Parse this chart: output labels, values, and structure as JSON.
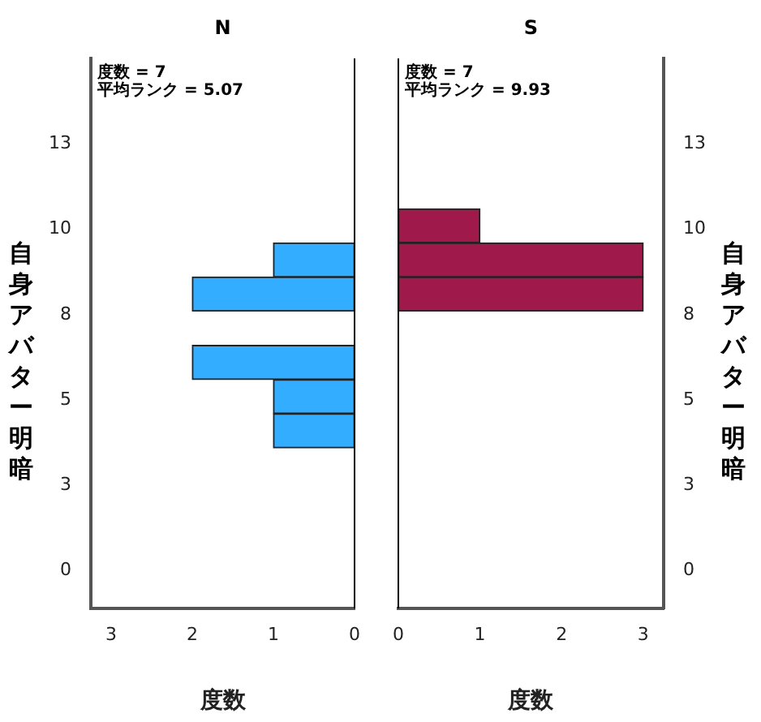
{
  "chart_data": [
    {
      "type": "histogram",
      "title": "N",
      "orientation": "horizontal",
      "bins": [
        3.6,
        4.6,
        5.6,
        6.6,
        7.6,
        8.6,
        9.6,
        10.6
      ],
      "values": [
        1,
        1,
        2,
        0,
        2,
        1,
        0
      ],
      "color": "#33adff",
      "xlim": [
        3.25,
        0
      ],
      "xticks": [
        3,
        2,
        1,
        0
      ],
      "ylim": [
        -1.1,
        15
      ],
      "yticks": [
        0,
        {
          "value": 2.5,
          "label": "3"
        },
        5,
        {
          "value": 7.5,
          "label": "8"
        },
        10,
        {
          "value": 12.5,
          "label": "13"
        }
      ],
      "xlabel": "度数",
      "ylabel": "自身アバター明暗",
      "annotations": [
        "度数 = 7",
        "平均ランク = 5.07"
      ],
      "grid": false,
      "legend": false
    },
    {
      "type": "histogram",
      "title": "S",
      "orientation": "horizontal",
      "bins": [
        3.6,
        4.6,
        5.6,
        6.6,
        7.6,
        8.6,
        9.6,
        10.6
      ],
      "values": [
        0,
        0,
        0,
        0,
        3,
        3,
        1
      ],
      "color": "#a0194b",
      "xlim": [
        0,
        3.25
      ],
      "xticks": [
        0,
        1,
        2,
        3
      ],
      "ylim": [
        -1.1,
        15
      ],
      "yticks": [
        0,
        {
          "value": 2.5,
          "label": "3"
        },
        5,
        {
          "value": 7.5,
          "label": "8"
        },
        10,
        {
          "value": 12.5,
          "label": "13"
        }
      ],
      "xlabel": "度数",
      "ylabel": "自身アバター明暗",
      "annotations": [
        "度数 = 7",
        "平均ランク = 9.93"
      ],
      "grid": false,
      "legend": false
    }
  ]
}
